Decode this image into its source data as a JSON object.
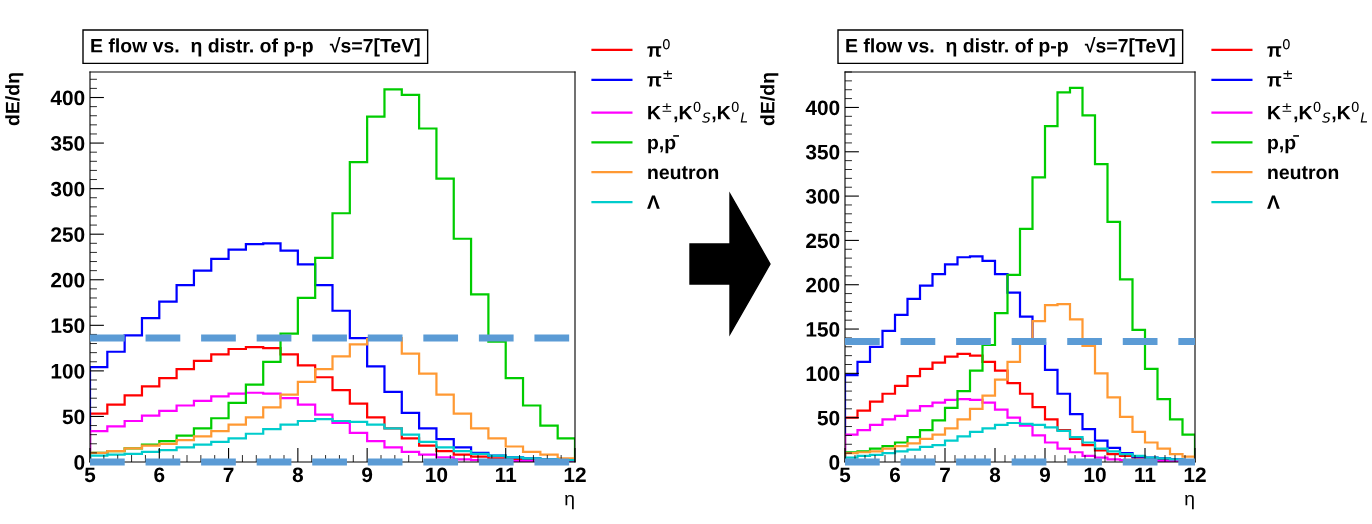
{
  "chart_data": [
    {
      "type": "histogram",
      "title": "E flow vs.  η distr. of p-p   √s=7[TeV]",
      "xlabel": "η",
      "ylabel": "dE/dη",
      "bins": [
        5,
        5.25,
        5.5,
        5.75,
        6,
        6.25,
        6.5,
        6.75,
        7,
        7.25,
        7.5,
        7.75,
        8,
        8.25,
        8.5,
        8.75,
        9,
        9.25,
        9.5,
        9.75,
        10,
        10.25,
        10.5,
        10.75,
        11,
        11.25,
        11.5,
        11.75,
        12
      ],
      "series": [
        {
          "name": "π$^{0}$",
          "color": "#ff0000",
          "values": [
            53,
            63,
            73,
            83,
            92,
            102,
            111,
            118,
            124,
            126,
            125,
            118,
            106,
            93,
            79,
            64,
            49,
            37,
            26,
            18,
            12,
            8,
            6,
            4,
            3,
            2,
            1,
            1
          ]
        },
        {
          "name": "π$^{±}$",
          "color": "#0000ff",
          "values": [
            104,
            121,
            139,
            158,
            176,
            194,
            210,
            223,
            233,
            239,
            240,
            232,
            217,
            194,
            166,
            136,
            105,
            77,
            54,
            37,
            25,
            16,
            10,
            7,
            5,
            4,
            3,
            2
          ]
        },
        {
          "name": "K$^{±}$,K$^{0}$$_{S}$,K$^{0}$$_{L}$",
          "color": "#ff00ff",
          "values": [
            34,
            39,
            45,
            51,
            56,
            62,
            67,
            72,
            75,
            76,
            75,
            70,
            63,
            52,
            43,
            32,
            23,
            16,
            11,
            8,
            5,
            3,
            2,
            2,
            1,
            1,
            1,
            0
          ]
        },
        {
          "name": "p,p̄",
          "color": "#00cc00",
          "values": [
            10,
            12,
            15,
            19,
            23,
            29,
            37,
            48,
            65,
            85,
            110,
            141,
            180,
            224,
            273,
            329,
            379,
            409,
            403,
            366,
            311,
            245,
            184,
            132,
            92,
            62,
            40,
            26
          ]
        },
        {
          "name": "neutron",
          "color": "#ff9933",
          "values": [
            10,
            12,
            15,
            18,
            20,
            24,
            28,
            34,
            41,
            49,
            60,
            74,
            88,
            102,
            116,
            129,
            135,
            136,
            119,
            97,
            74,
            53,
            37,
            26,
            17,
            11,
            8,
            4
          ]
        },
        {
          "name": "Λ",
          "color": "#00cccc",
          "values": [
            7,
            8,
            9,
            11,
            13,
            16,
            19,
            22,
            26,
            31,
            36,
            41,
            45,
            47,
            45,
            44,
            41,
            37,
            30,
            22,
            16,
            12,
            9,
            7,
            5,
            4,
            3,
            2
          ]
        }
      ],
      "xlim": [
        5,
        12
      ],
      "xticks": [
        5,
        6,
        7,
        8,
        9,
        10,
        11,
        12
      ],
      "ylim": [
        0,
        428
      ],
      "yticks": [
        0,
        50,
        100,
        150,
        200,
        250,
        300,
        350,
        400
      ],
      "legend": "top right",
      "grid": false,
      "ref_lines": [
        {
          "axis": "y",
          "value": 136,
          "color": "#5b9bd5",
          "line_style": "dashed"
        },
        {
          "axis": "y",
          "value": 0,
          "color": "#5b9bd5",
          "line_style": "dashed"
        }
      ]
    },
    {
      "type": "histogram",
      "title": "E flow vs.  η distr. of p-p   √s=7[TeV]",
      "xlabel": "η",
      "ylabel": "dE/dη",
      "bins": [
        5,
        5.25,
        5.5,
        5.75,
        6,
        6.25,
        6.5,
        6.75,
        7,
        7.25,
        7.5,
        7.75,
        8,
        8.25,
        8.5,
        8.75,
        9,
        9.25,
        9.5,
        9.75,
        10,
        10.25,
        10.5,
        10.75,
        11,
        11.25,
        11.5,
        11.75,
        12
      ],
      "series": [
        {
          "name": "π$^{0}$",
          "color": "#ff0000",
          "values": [
            50,
            58,
            68,
            77,
            86,
            97,
            105,
            112,
            119,
            122,
            120,
            113,
            103,
            89,
            77,
            62,
            48,
            36,
            26,
            19,
            13,
            9,
            7,
            5,
            3,
            2,
            1,
            1
          ]
        },
        {
          "name": "π$^{±}$",
          "color": "#0000ff",
          "values": [
            98,
            113,
            130,
            148,
            166,
            184,
            199,
            212,
            223,
            231,
            232,
            227,
            212,
            191,
            164,
            134,
            104,
            77,
            54,
            37,
            24,
            16,
            10,
            6,
            5,
            4,
            3,
            2
          ]
        },
        {
          "name": "K$^{±}$,K$^{0}$$_{S}$,K$^{0}$$_{L}$",
          "color": "#ff00ff",
          "values": [
            31,
            36,
            42,
            48,
            52,
            58,
            63,
            67,
            70,
            71,
            70,
            67,
            59,
            50,
            41,
            30,
            22,
            15,
            11,
            7,
            5,
            3,
            2,
            2,
            1,
            1,
            1,
            0
          ]
        },
        {
          "name": "p,p̄",
          "color": "#00cc00",
          "values": [
            11,
            12,
            15,
            18,
            22,
            28,
            36,
            47,
            61,
            80,
            103,
            132,
            168,
            211,
            263,
            321,
            379,
            417,
            422,
            391,
            336,
            271,
            206,
            149,
            105,
            71,
            48,
            31
          ]
        },
        {
          "name": "neutron",
          "color": "#ff9933",
          "values": [
            10,
            11,
            12,
            15,
            18,
            21,
            26,
            31,
            38,
            48,
            60,
            75,
            93,
            113,
            137,
            159,
            177,
            178,
            161,
            131,
            100,
            73,
            51,
            34,
            22,
            15,
            9,
            6
          ]
        },
        {
          "name": "Λ",
          "color": "#00cccc",
          "values": [
            5,
            7,
            8,
            10,
            12,
            14,
            17,
            19,
            24,
            29,
            34,
            38,
            42,
            44,
            43,
            42,
            39,
            35,
            28,
            22,
            15,
            12,
            9,
            7,
            5,
            4,
            3,
            2
          ]
        }
      ],
      "xlim": [
        5,
        12
      ],
      "xticks": [
        5,
        6,
        7,
        8,
        9,
        10,
        11,
        12
      ],
      "ylim": [
        0,
        440
      ],
      "yticks": [
        0,
        50,
        100,
        150,
        200,
        250,
        300,
        350,
        400
      ],
      "legend": "top right",
      "grid": false,
      "ref_lines": [
        {
          "axis": "y",
          "value": 136,
          "color": "#5b9bd5",
          "line_style": "dashed"
        },
        {
          "axis": "y",
          "value": 0,
          "color": "#5b9bd5",
          "line_style": "dashed"
        }
      ]
    }
  ]
}
